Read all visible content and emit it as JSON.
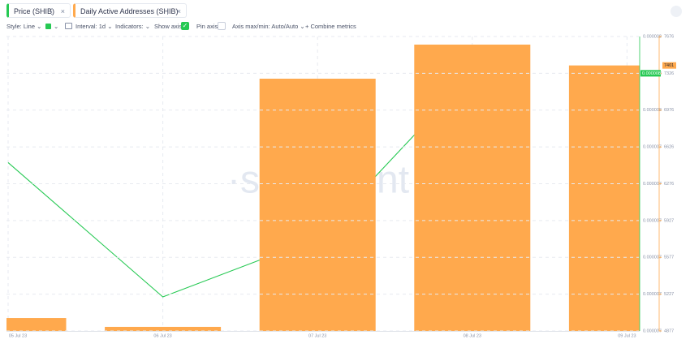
{
  "ui": {
    "toolbar": [
      "Style: Line",
      "Interval: 1d",
      "Indicators:",
      "Show axis",
      "Pin axis",
      "Axis max/min: Auto/Auto",
      "Combine metrics"
    ],
    "watermark": "·santiment"
  },
  "chart_data": {
    "type": "bar",
    "categories": [
      "05 Jul 23",
      "06 Jul 23",
      "07 Jul 23",
      "08 Jul 23",
      "09 Jul 23"
    ],
    "series": [
      {
        "name": "Price (SHIB)",
        "type": "line",
        "color": "#26c953",
        "axis": "y",
        "values": [
          7.463e-06,
          7.317e-06,
          7.381e-06,
          7.56e-06,
          null
        ],
        "current_label": "0.000008"
      },
      {
        "name": "Daily Active Addresses (SHIB)",
        "type": "bar",
        "color": "#ffa94d",
        "axis": "y2",
        "values": [
          5000,
          4916,
          7275,
          7599,
          7401
        ],
        "current_label": "7401"
      }
    ],
    "ylim": [
      7.28e-06,
      7.6e-06
    ],
    "yticks": [
      {
        "value": 7.6e-06,
        "label": "0.000008"
      },
      {
        "value": 7.56e-06,
        "label": "0.000008"
      },
      {
        "value": 7.52e-06,
        "label": "0.000008"
      },
      {
        "value": 7.48e-06,
        "label": "0.000007"
      },
      {
        "value": 7.44e-06,
        "label": "0.000007"
      },
      {
        "value": 7.4e-06,
        "label": "0.000007"
      },
      {
        "value": 7.36e-06,
        "label": "0.000007"
      },
      {
        "value": 7.32e-06,
        "label": "0.000007"
      },
      {
        "value": 7.28e-06,
        "label": "0.000007"
      }
    ],
    "y2lim": [
      4877,
      7676
    ],
    "y2ticks": [
      7676,
      7326,
      6976,
      6626,
      6276,
      5927,
      5577,
      5227,
      4877
    ],
    "grid": true
  }
}
